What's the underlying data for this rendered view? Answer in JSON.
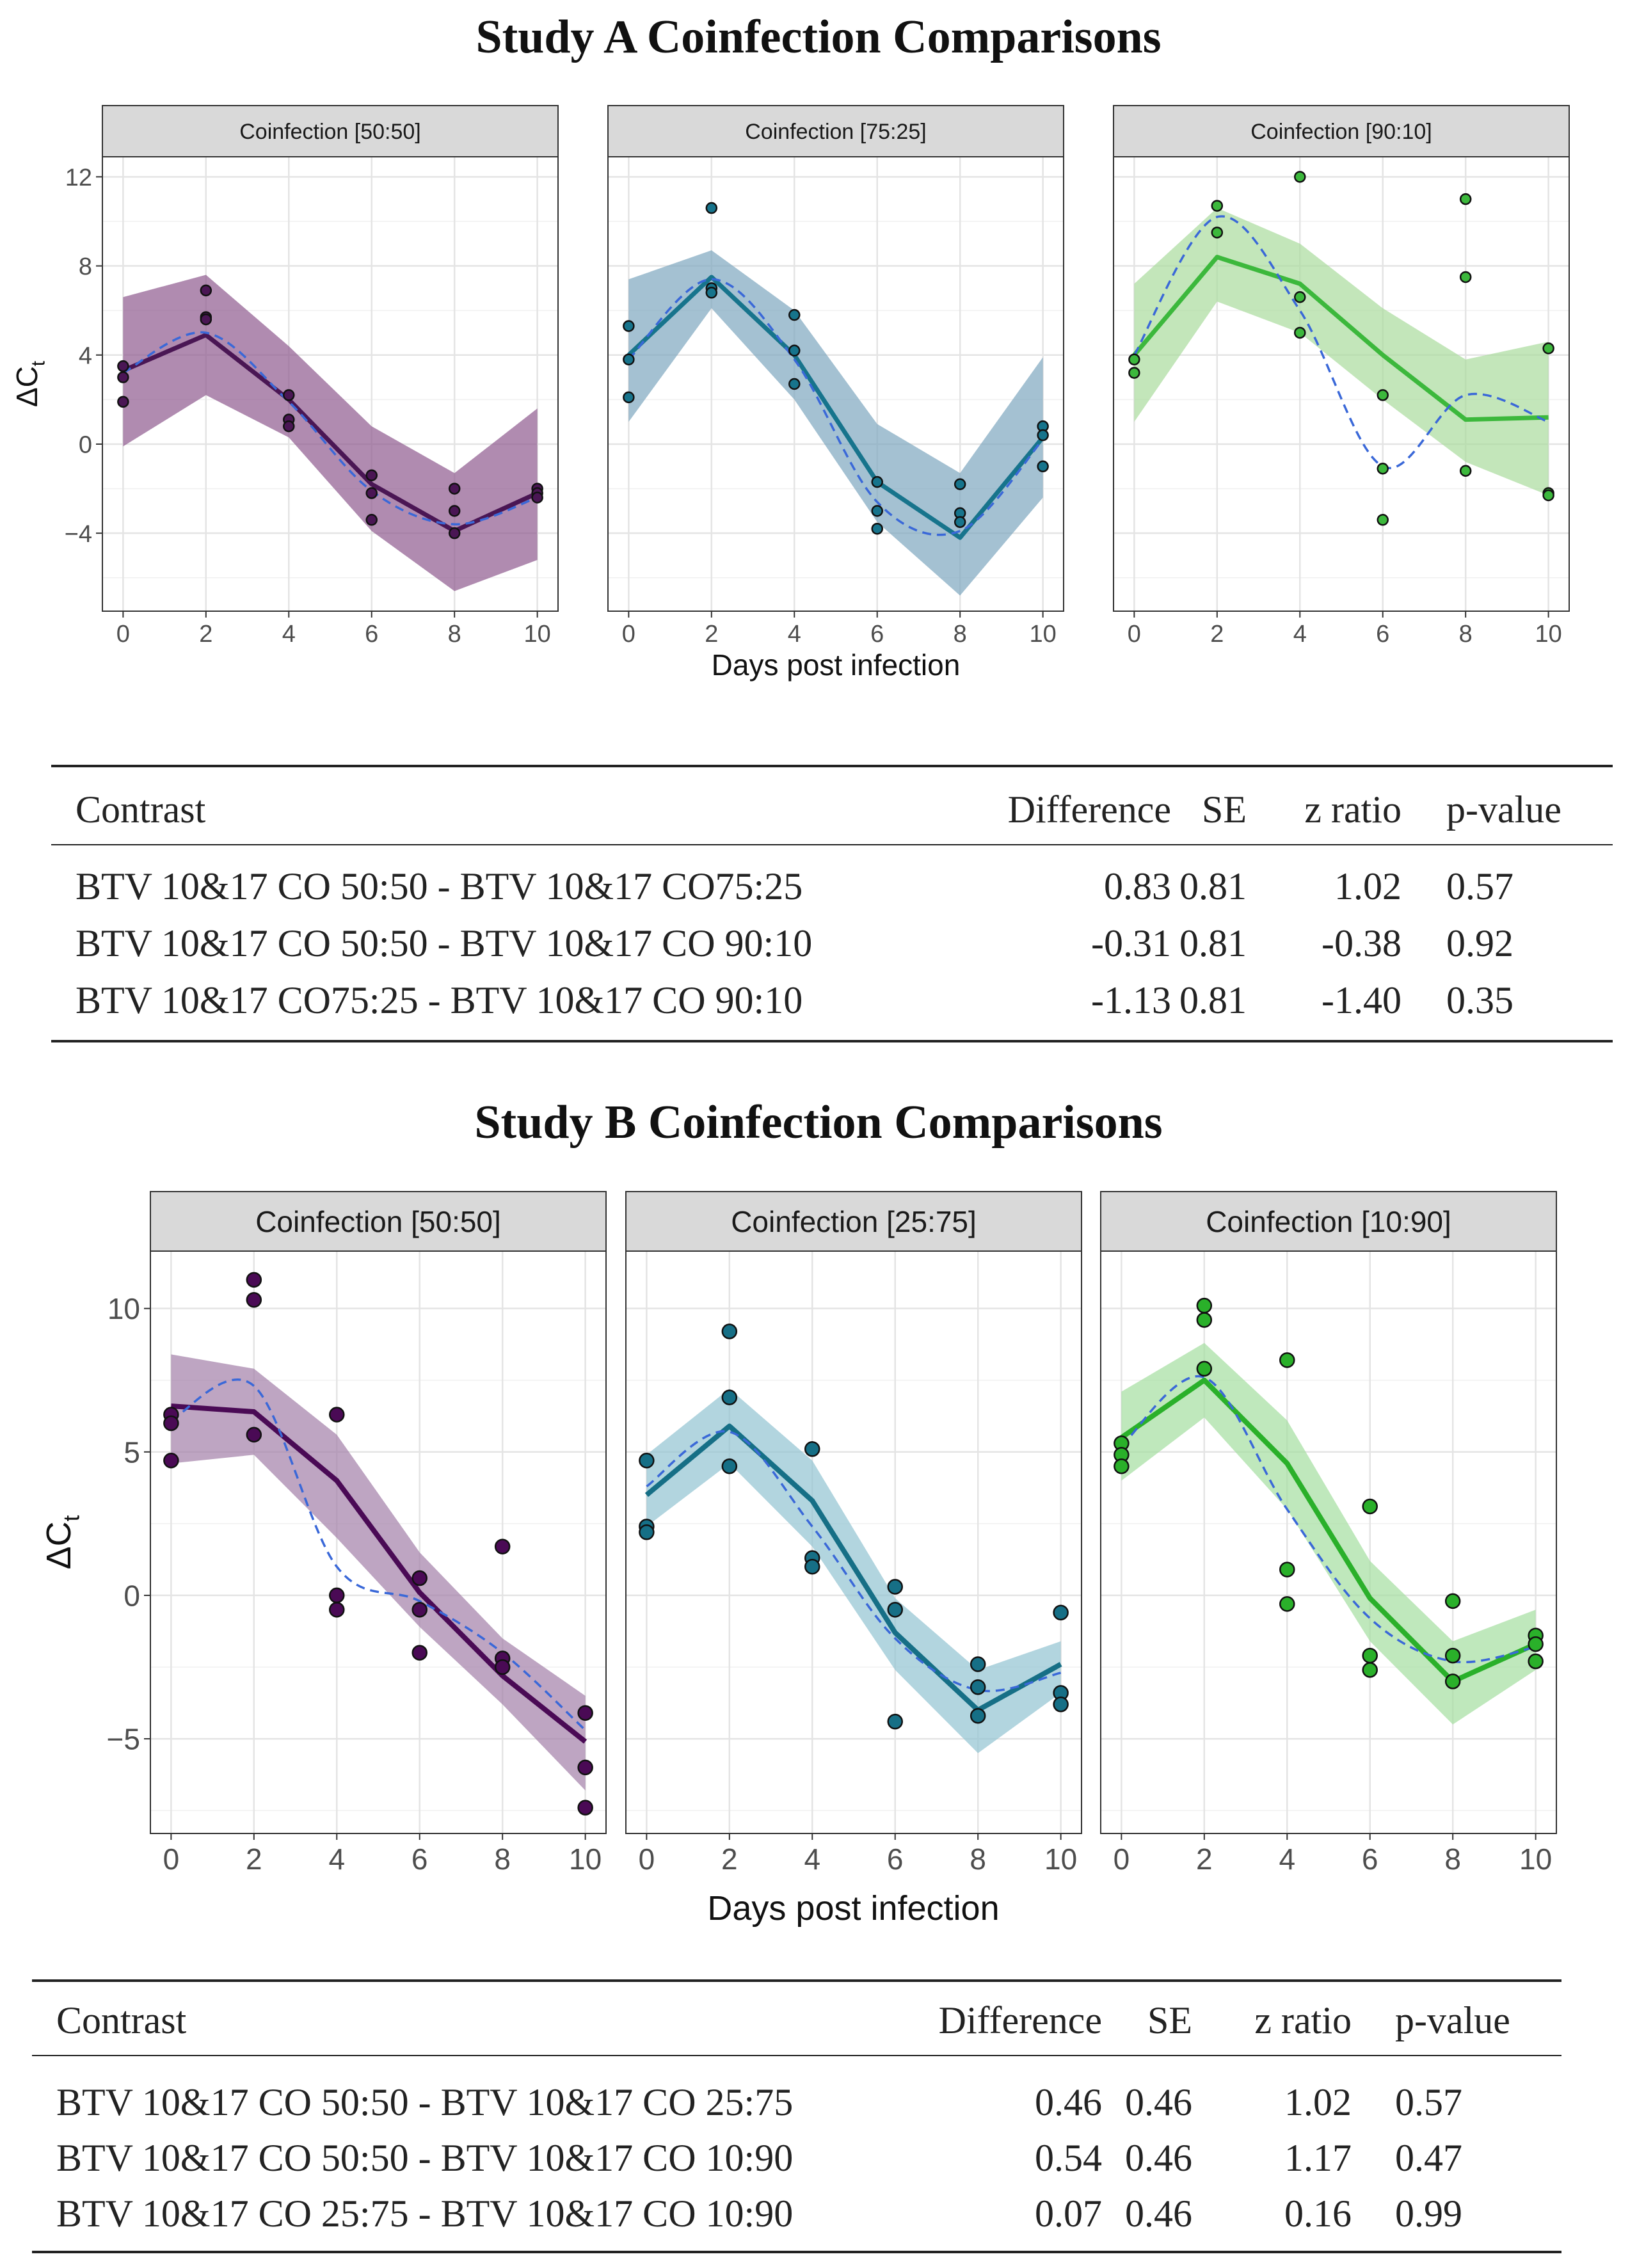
{
  "sections": [
    {
      "title": "Study A Coinfection Comparisons",
      "chart_data": {
        "type": "line",
        "xlabel": "Days post infection",
        "ylabel": "ΔCt",
        "xlim": [
          -0.5,
          10.5
        ],
        "ylim": [
          -7.5,
          12.9
        ],
        "xticks": [
          0,
          2,
          4,
          6,
          8,
          10
        ],
        "yticks": [
          -4,
          0,
          4,
          8,
          12
        ],
        "grid": true,
        "panels": [
          {
            "name": "Coinfection [50:50]",
            "color": "#4a1654",
            "band_color": "#8e5a8e",
            "x": [
              0,
              2,
              4,
              6,
              8,
              10
            ],
            "mean": [
              3.3,
              4.9,
              2.0,
              -1.8,
              -3.9,
              -2.2
            ],
            "lower": [
              -0.1,
              2.2,
              0.3,
              -3.9,
              -6.6,
              -5.2
            ],
            "upper": [
              6.6,
              7.6,
              4.4,
              0.8,
              -1.3,
              1.6
            ],
            "smooth": [
              3.2,
              5.0,
              1.9,
              -2.1,
              -3.6,
              -2.4
            ],
            "points": [
              [
                0,
                3.5
              ],
              [
                0,
                3.0
              ],
              [
                0,
                1.9
              ],
              [
                2,
                6.9
              ],
              [
                2,
                5.7
              ],
              [
                2,
                5.6
              ],
              [
                4,
                2.2
              ],
              [
                4,
                1.1
              ],
              [
                4,
                0.8
              ],
              [
                6,
                -1.4
              ],
              [
                6,
                -2.2
              ],
              [
                6,
                -3.4
              ],
              [
                8,
                -2.0
              ],
              [
                8,
                -3.0
              ],
              [
                8,
                -4.0
              ],
              [
                10,
                -2.0
              ],
              [
                10,
                -2.2
              ],
              [
                10,
                -2.4
              ]
            ]
          },
          {
            "name": "Coinfection [75:25]",
            "color": "#17748c",
            "band_color": "#7ea6bf",
            "x": [
              0,
              2,
              4,
              6,
              8,
              10
            ],
            "mean": [
              4.0,
              7.5,
              4.0,
              -1.7,
              -4.2,
              0.3
            ],
            "lower": [
              1.0,
              6.1,
              2.0,
              -3.5,
              -6.8,
              -2.4
            ],
            "upper": [
              7.4,
              8.7,
              6.0,
              0.9,
              -1.3,
              3.9
            ],
            "smooth": [
              3.8,
              7.4,
              3.8,
              -2.6,
              -3.9,
              0.2
            ],
            "points": [
              [
                0,
                5.3
              ],
              [
                0,
                3.8
              ],
              [
                0,
                2.1
              ],
              [
                2,
                10.6
              ],
              [
                2,
                7.0
              ],
              [
                2,
                6.8
              ],
              [
                4,
                5.8
              ],
              [
                4,
                4.2
              ],
              [
                4,
                2.7
              ],
              [
                6,
                -1.7
              ],
              [
                6,
                -3.0
              ],
              [
                6,
                -3.8
              ],
              [
                8,
                -1.8
              ],
              [
                8,
                -3.1
              ],
              [
                8,
                -3.5
              ],
              [
                10,
                0.8
              ],
              [
                10,
                0.4
              ],
              [
                10,
                -1.0
              ]
            ]
          },
          {
            "name": "Coinfection [90:10]",
            "color": "#3cb83c",
            "band_color": "#a9dc9c",
            "x": [
              0,
              2,
              4,
              6,
              8,
              10
            ],
            "mean": [
              4.0,
              8.4,
              7.2,
              4.0,
              1.1,
              1.2
            ],
            "lower": [
              1.0,
              6.4,
              5.0,
              2.0,
              -0.8,
              -2.3
            ],
            "upper": [
              7.2,
              10.6,
              9.0,
              6.1,
              3.8,
              4.6
            ],
            "smooth": [
              4.0,
              10.2,
              6.0,
              -1.0,
              2.2,
              1.0
            ],
            "points": [
              [
                0,
                3.8
              ],
              [
                0,
                3.2
              ],
              [
                2,
                10.7
              ],
              [
                2,
                9.5
              ],
              [
                4,
                12.0
              ],
              [
                4,
                6.6
              ],
              [
                4,
                5.0
              ],
              [
                6,
                2.2
              ],
              [
                6,
                -1.1
              ],
              [
                6,
                -3.4
              ],
              [
                8,
                11.0
              ],
              [
                8,
                7.5
              ],
              [
                8,
                -1.2
              ],
              [
                10,
                4.3
              ],
              [
                10,
                -2.2
              ],
              [
                10,
                -2.3
              ]
            ]
          }
        ]
      },
      "table": {
        "headers": [
          "Contrast",
          "Difference",
          "SE",
          "z ratio",
          "p-value"
        ],
        "rows": [
          [
            "BTV 10&17 CO 50:50 - BTV 10&17 CO75:25",
            "0.83",
            "0.81",
            "1.02",
            "0.57"
          ],
          [
            "BTV 10&17 CO 50:50 - BTV 10&17 CO 90:10",
            "-0.31",
            "0.81",
            "-0.38",
            "0.92"
          ],
          [
            "BTV 10&17 CO75:25 - BTV 10&17 CO 90:10",
            "-1.13",
            "0.81",
            "-1.40",
            "0.35"
          ]
        ]
      }
    },
    {
      "title": "Study B Coinfection Comparisons",
      "chart_data": {
        "type": "line",
        "xlabel": "Days post infection",
        "ylabel": "ΔCt",
        "xlim": [
          -0.5,
          10.5
        ],
        "ylim": [
          -8.3,
          12.0
        ],
        "xticks": [
          0,
          2,
          4,
          6,
          8,
          10
        ],
        "yticks": [
          -5,
          0,
          5,
          10
        ],
        "grid": true,
        "panels": [
          {
            "name": "Coinfection [50:50]",
            "color": "#4a0a55",
            "band_color": "#a37fa8",
            "x": [
              0,
              2,
              4,
              6,
              8,
              10
            ],
            "mean": [
              6.6,
              6.4,
              4.0,
              0.1,
              -2.8,
              -5.1
            ],
            "lower": [
              4.6,
              4.9,
              2.0,
              -1.1,
              -3.8,
              -6.8
            ],
            "upper": [
              8.4,
              7.9,
              5.6,
              1.5,
              -1.5,
              -3.5
            ],
            "smooth": [
              6.1,
              7.3,
              1.0,
              -0.2,
              -2.0,
              -4.7
            ],
            "points": [
              [
                0,
                6.3
              ],
              [
                0,
                6.0
              ],
              [
                0,
                4.7
              ],
              [
                2,
                11.0
              ],
              [
                2,
                10.3
              ],
              [
                2,
                5.6
              ],
              [
                4,
                6.3
              ],
              [
                4,
                0.0
              ],
              [
                4,
                -0.5
              ],
              [
                6,
                0.6
              ],
              [
                6,
                -0.5
              ],
              [
                6,
                -2.0
              ],
              [
                8,
                1.7
              ],
              [
                8,
                -2.2
              ],
              [
                8,
                -2.5
              ],
              [
                10,
                -4.1
              ],
              [
                10,
                -6.0
              ],
              [
                10,
                -7.4
              ]
            ]
          },
          {
            "name": "Coinfection [25:75]",
            "color": "#166f86",
            "band_color": "#92c3d1",
            "x": [
              0,
              2,
              4,
              6,
              8,
              10
            ],
            "mean": [
              3.5,
              5.9,
              3.3,
              -1.3,
              -4.0,
              -2.4
            ],
            "lower": [
              2.4,
              4.6,
              1.7,
              -2.6,
              -5.5,
              -3.4
            ],
            "upper": [
              4.9,
              7.2,
              4.7,
              -0.1,
              -2.6,
              -1.6
            ],
            "smooth": [
              3.8,
              5.7,
              2.4,
              -1.5,
              -3.3,
              -2.7
            ],
            "points": [
              [
                0,
                4.7
              ],
              [
                0,
                2.4
              ],
              [
                0,
                2.2
              ],
              [
                2,
                9.2
              ],
              [
                2,
                6.9
              ],
              [
                2,
                4.5
              ],
              [
                4,
                5.1
              ],
              [
                4,
                1.3
              ],
              [
                4,
                1.0
              ],
              [
                6,
                0.3
              ],
              [
                6,
                -0.5
              ],
              [
                6,
                -4.4
              ],
              [
                8,
                -2.4
              ],
              [
                8,
                -3.2
              ],
              [
                8,
                -4.2
              ],
              [
                10,
                -0.6
              ],
              [
                10,
                -3.4
              ],
              [
                10,
                -3.8
              ]
            ]
          },
          {
            "name": "Coinfection [10:90]",
            "color": "#2ab02a",
            "band_color": "#a4dea0",
            "x": [
              0,
              2,
              4,
              6,
              8,
              10
            ],
            "mean": [
              5.5,
              7.5,
              4.6,
              -0.1,
              -3.0,
              -1.7
            ],
            "lower": [
              4.0,
              6.2,
              3.0,
              -1.6,
              -4.5,
              -2.6
            ],
            "upper": [
              7.1,
              8.8,
              6.1,
              1.2,
              -1.6,
              -0.5
            ],
            "smooth": [
              5.2,
              7.6,
              3.0,
              -0.8,
              -2.3,
              -1.8
            ],
            "points": [
              [
                0,
                5.3
              ],
              [
                0,
                4.9
              ],
              [
                0,
                4.5
              ],
              [
                2,
                10.1
              ],
              [
                2,
                9.6
              ],
              [
                2,
                7.9
              ],
              [
                4,
                8.2
              ],
              [
                4,
                0.9
              ],
              [
                4,
                -0.3
              ],
              [
                6,
                3.1
              ],
              [
                6,
                -2.1
              ],
              [
                6,
                -2.6
              ],
              [
                8,
                -0.2
              ],
              [
                8,
                -2.1
              ],
              [
                8,
                -3.0
              ],
              [
                10,
                -1.4
              ],
              [
                10,
                -1.7
              ],
              [
                10,
                -2.3
              ]
            ]
          }
        ]
      },
      "table": {
        "headers": [
          "Contrast",
          "Difference",
          "SE",
          "z ratio",
          "p-value"
        ],
        "rows": [
          [
            "BTV 10&17 CO 50:50 - BTV 10&17 CO 25:75",
            "0.46",
            "0.46",
            "1.02",
            "0.57"
          ],
          [
            "BTV 10&17 CO 50:50 - BTV 10&17 CO 10:90",
            "0.54",
            "0.46",
            "1.17",
            "0.47"
          ],
          [
            "BTV 10&17 CO 25:75 - BTV 10&17 CO 10:90",
            "0.07",
            "0.46",
            "0.16",
            "0.99"
          ]
        ]
      }
    }
  ]
}
